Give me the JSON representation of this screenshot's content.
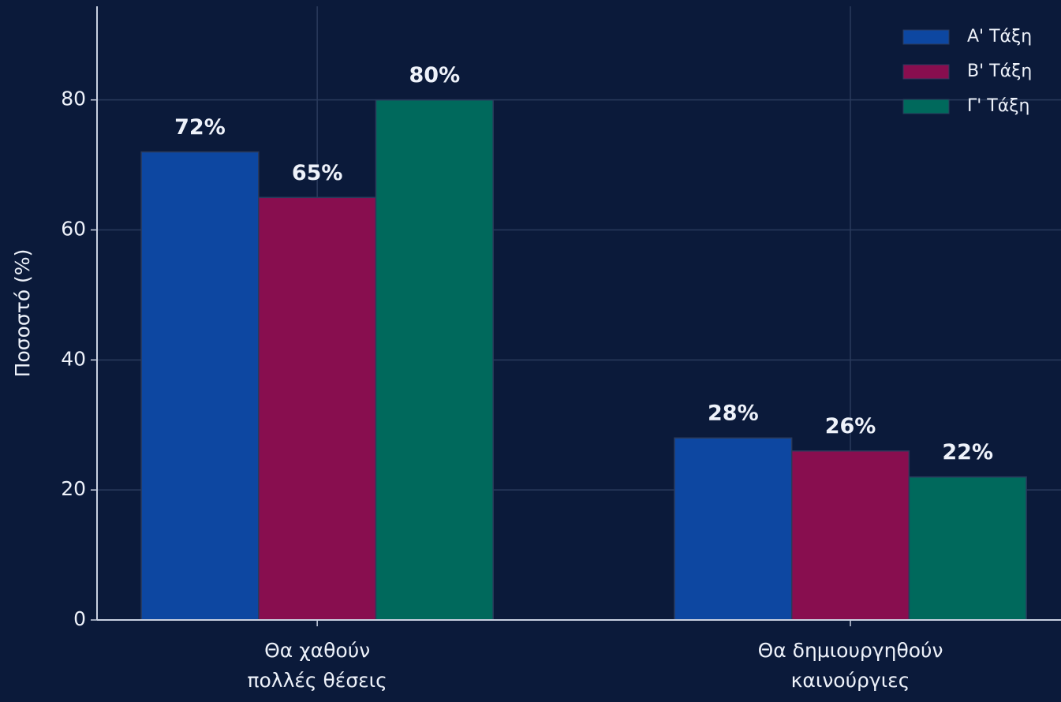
{
  "chart_data": {
    "type": "bar",
    "categories": [
      "Θα χαθούν\nπολλές θέσεις",
      "Θα δημιουργηθούν\nκαινούργιες"
    ],
    "series": [
      {
        "name": "Α' Τάξη",
        "color": "#0d47a1",
        "values": [
          72,
          28
        ],
        "value_labels": [
          "72%",
          "28%"
        ]
      },
      {
        "name": "Β' Τάξη",
        "color": "#880e4f",
        "values": [
          65,
          26
        ],
        "value_labels": [
          "65%",
          "26%"
        ]
      },
      {
        "name": "Γ' Τάξη",
        "color": "#00695c",
        "values": [
          80,
          22
        ],
        "value_labels": [
          "80%",
          "22%"
        ]
      }
    ],
    "ylabel": "Ποσοστό (%)",
    "ylim": [
      0,
      94.4
    ],
    "yticks": [
      0,
      20,
      40,
      60,
      80
    ],
    "grid": true,
    "legend": "upper right"
  }
}
